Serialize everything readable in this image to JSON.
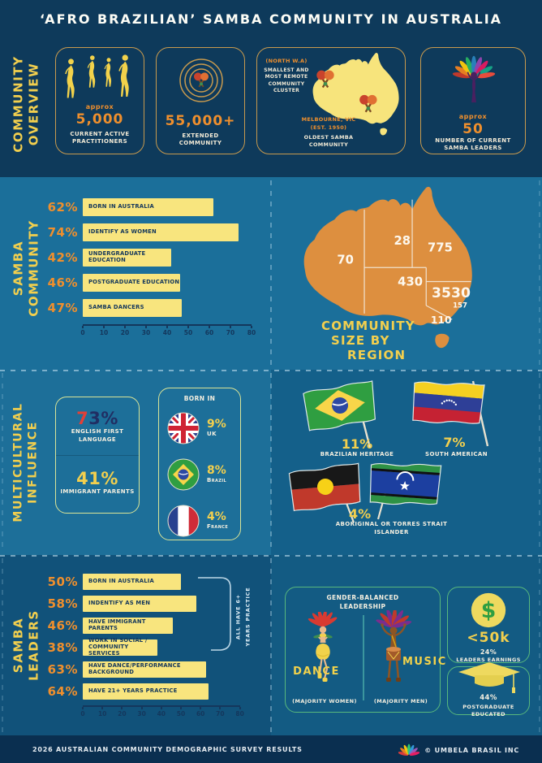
{
  "title": "‘AFRO BRAZILIAN’ SAMBA COMMUNITY IN AUSTRALIA",
  "colors": {
    "background": "#0e3a5b",
    "panel_teal": "#1b6f9a",
    "panel_teal_dark": "#14608a",
    "panel_deep": "#11527a",
    "accent_orange": "#ef8f2d",
    "accent_yellow": "#f2cf4e",
    "bar_yellow": "#f8e57e",
    "map_orange": "#dd8f3f",
    "gold_border": "#c89a4e",
    "green_border": "#58b87d",
    "red_accent": "#e04038",
    "navy_text": "#14375c"
  },
  "sections": {
    "overview": {
      "label_lines": [
        "COMMUNITY",
        "OVERVIEW"
      ],
      "cards": [
        {
          "icon": "dancer-silhouettes",
          "prefix": "approx",
          "value": "5,000",
          "label": "CURRENT ACTIVE PRACTITIONERS"
        },
        {
          "icon": "target-maracas",
          "value": "55,000+",
          "label": "EXTENDED COMMUNITY"
        },
        {
          "icon": "australia-map-maracas",
          "note1_title": "(NORTH W.A)",
          "note1_text": "SMALLEST AND MOST REMOTE COMMUNITY CLUSTER",
          "note2_title": "MELBOURNE, VIC",
          "note2_sub": "(EST. 1950)",
          "note2_text": "OLDEST SAMBA COMMUNITY"
        },
        {
          "icon": "carnival-leader",
          "prefix": "approx",
          "value": "50",
          "label": "NUMBER OF CURRENT SAMBA LEADERS"
        }
      ]
    },
    "community": {
      "label_lines": [
        "SAMBA",
        "COMMUNITY"
      ],
      "map_title_lines": [
        "COMMUNITY",
        "SIZE BY",
        "REGION"
      ]
    },
    "multicultural": {
      "label_lines": [
        "MULTICULTURAL",
        "INFLUENCE"
      ],
      "english": {
        "head": "7",
        "tail": "3%",
        "label": "ENGLISH FIRST LANGUAGE"
      },
      "immigrant": {
        "value": "41%",
        "label": "IMMIGRANT PARENTS"
      },
      "born_in": {
        "title": "BORN IN",
        "rows": [
          {
            "flag": "uk",
            "value": "9%",
            "label": "UK"
          },
          {
            "flag": "brazil",
            "value": "8%",
            "label": "Brazil"
          },
          {
            "flag": "france",
            "value": "4%",
            "label": "France"
          }
        ]
      },
      "heritage": [
        {
          "flag": "brazil-waving",
          "value": "11%",
          "label": "BRAZILIAN HERITAGE"
        },
        {
          "flag": "venezuela-waving",
          "value": "7%",
          "label": "SOUTH AMERICAN"
        },
        {
          "flag": "aboriginal-and-torres-strait",
          "value": "4%",
          "label": "ABORIGINAL OR TORRES STRAIT ISLANDER"
        }
      ]
    },
    "leaders": {
      "label_lines": [
        "SAMBA",
        "LEADERS"
      ],
      "bracket_lines": [
        "ALL HAVE 6+",
        "YEARS PRACTICE"
      ],
      "gender": {
        "title": "GENDER-BALANCED LEADERSHIP",
        "dance": {
          "name": "DANCE",
          "sub": "(MAJORITY WOMEN)"
        },
        "music": {
          "name": "MUSIC",
          "sub": "(MAJORITY MEN)"
        }
      },
      "earnings": {
        "value": "<50k",
        "pct": "24%",
        "label": "LEADERS EARNINGS"
      },
      "education": {
        "pct": "44%",
        "label": "POSTGRADUATE EDUCATED"
      }
    }
  },
  "chart_data": [
    {
      "type": "bar",
      "orientation": "horizontal",
      "title": "SAMBA COMMUNITY",
      "categories": [
        "BORN IN AUSTRALIA",
        "IDENTIFY AS WOMEN",
        "UNDERGRADUATE EDUCATION",
        "POSTGRADUATE EDUCATION",
        "SAMBA DANCERS"
      ],
      "values": [
        62,
        74,
        42,
        46,
        47
      ],
      "value_suffix": "%",
      "xlim": [
        0,
        80
      ],
      "xticks": [
        0,
        10,
        20,
        30,
        40,
        50,
        60,
        70,
        80
      ],
      "grid": false,
      "bar_color": "#f8e57e",
      "value_label_color": "#ef8f2d"
    },
    {
      "type": "bar",
      "orientation": "horizontal",
      "title": "SAMBA LEADERS",
      "categories": [
        "BORN IN AUSTRALIA",
        "INDENTIFY AS MEN",
        "HAVE IMMIGRANT PARENTS",
        "WORK IN SOCIAL / COMMUNITY SERVICES",
        "HAVE DANCE/PERFORMANCE BACKGROUND",
        "HAVE 21+ YEARS PRACTICE"
      ],
      "values": [
        50,
        58,
        46,
        38,
        63,
        64
      ],
      "value_suffix": "%",
      "xlim": [
        0,
        80
      ],
      "xticks": [
        0,
        10,
        20,
        30,
        40,
        50,
        60,
        70,
        80
      ],
      "grid": false,
      "bar_color": "#f8e57e",
      "value_label_color": "#ef8f2d",
      "annotation": "ALL HAVE 6+ YEARS PRACTICE"
    },
    {
      "type": "map",
      "title": "COMMUNITY SIZE BY REGION",
      "regions": [
        {
          "name": "WA",
          "value": "70"
        },
        {
          "name": "NT",
          "value": "28"
        },
        {
          "name": "QLD",
          "value": "775"
        },
        {
          "name": "SA",
          "value": "430"
        },
        {
          "name": "NSW",
          "value": "3530"
        },
        {
          "name": "ACT",
          "value": "157"
        },
        {
          "name": "VIC",
          "value": "110"
        }
      ]
    }
  ],
  "footer": {
    "left": "2026 AUSTRALIAN COMMUNITY DEMOGRAPHIC SURVEY RESULTS",
    "right": "© UMBELA BRASIL INC",
    "logo": "umbela-feather-starburst"
  }
}
